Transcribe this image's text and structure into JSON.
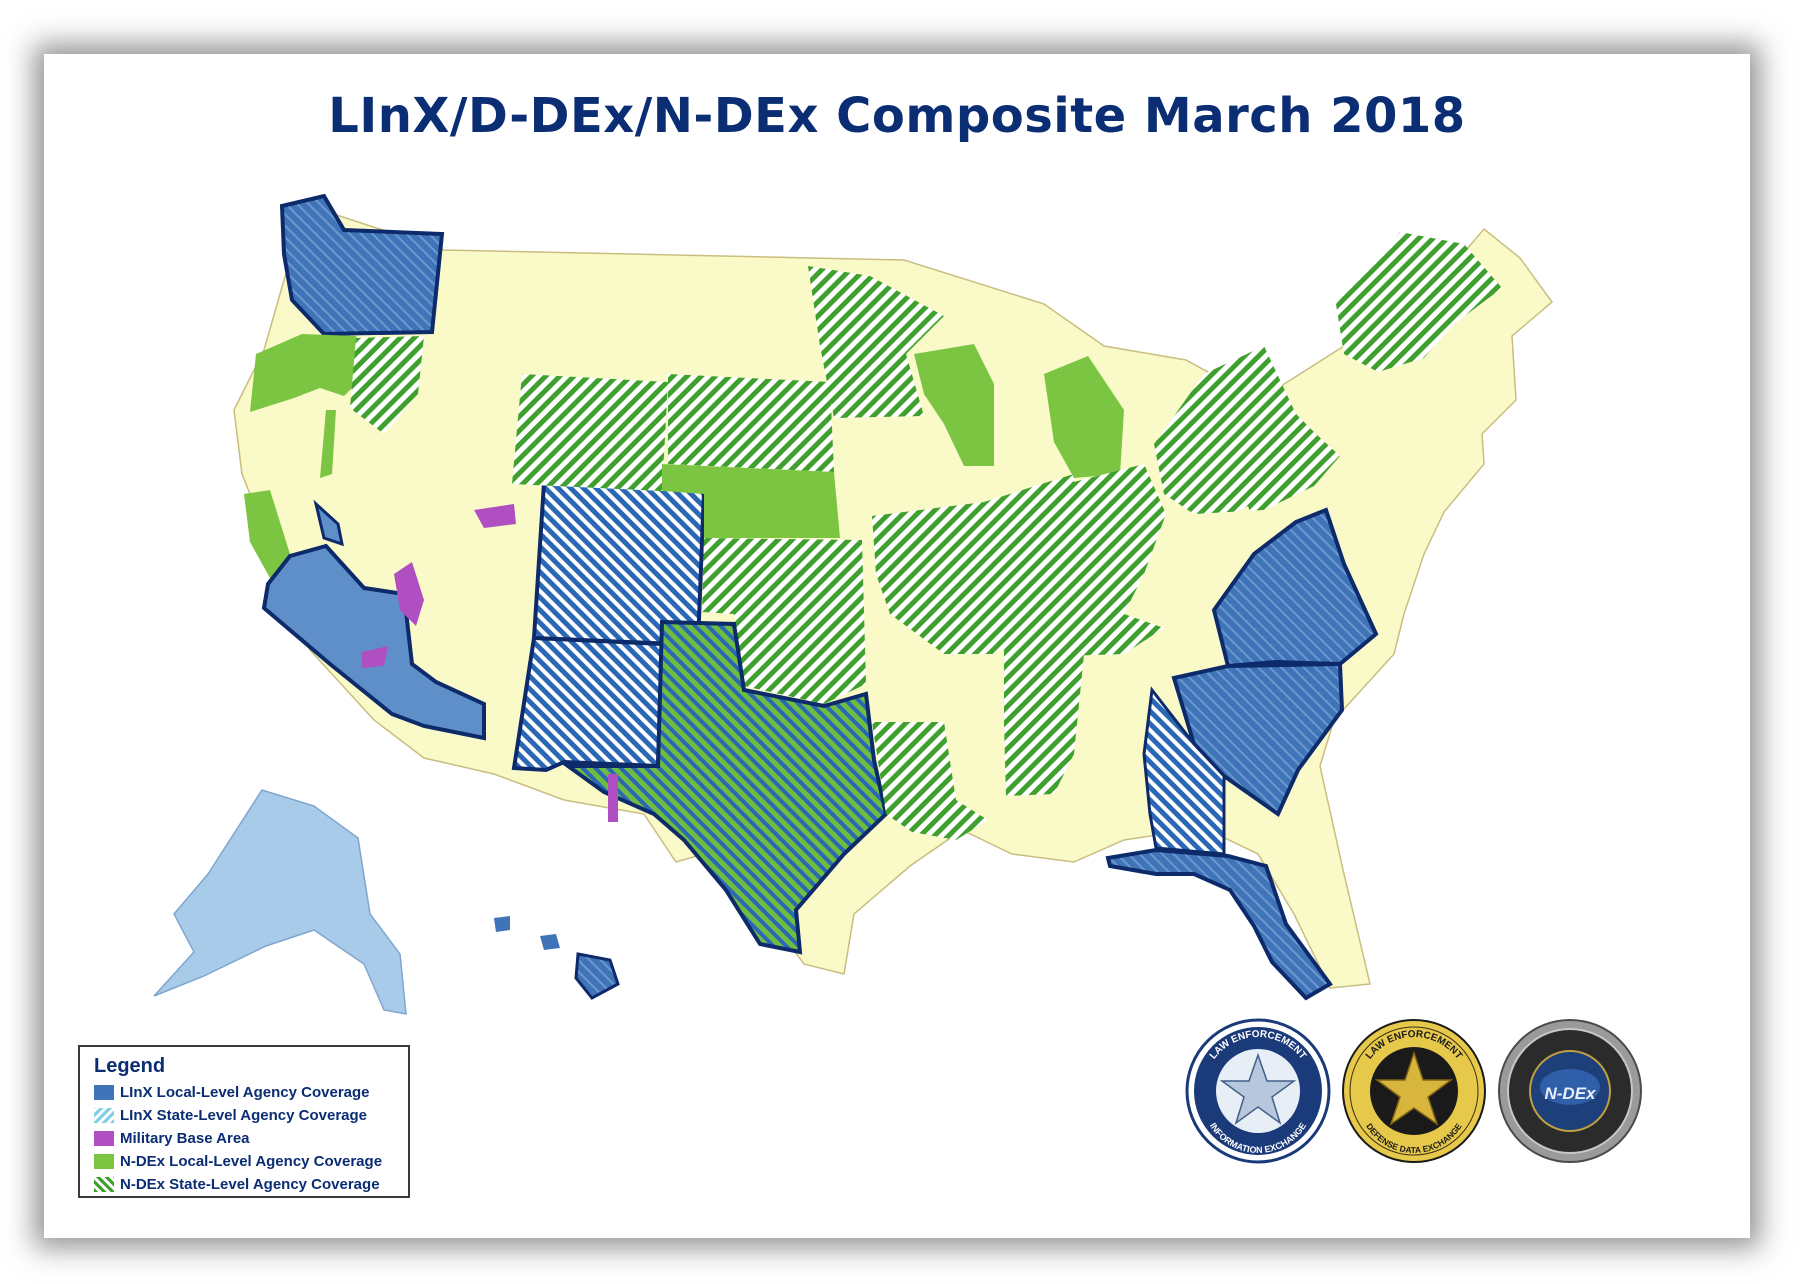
{
  "title": "LInX/D-DEx/N-DEx Composite March 2018",
  "legend": {
    "title": "Legend",
    "items": [
      {
        "label": "LInX Local-Level Agency Coverage",
        "swatch": "linx-local"
      },
      {
        "label": "LInX State-Level Agency Coverage",
        "swatch": "linx-state"
      },
      {
        "label": "Military Base Area",
        "swatch": "military"
      },
      {
        "label": "N-DEx Local-Level Agency Coverage",
        "swatch": "ndex-local"
      },
      {
        "label": "N-DEx State-Level Agency Coverage",
        "swatch": "ndex-state"
      }
    ]
  },
  "seals": [
    {
      "name": "linx-seal",
      "ring_top": "LAW ENFORCEMENT",
      "ring_bottom": "INFORMATION EXCHANGE"
    },
    {
      "name": "ddex-seal",
      "ring_top": "LAW ENFORCEMENT",
      "ring_bottom": "DEFENSE DATA EXCHANGE"
    },
    {
      "name": "ndex-seal",
      "center": "N-DEx"
    }
  ],
  "colors": {
    "background_state": "#fafac8",
    "linx_local": "#3f74b8",
    "linx_state": "#2a68b6",
    "military": "#b04fc2",
    "ndex_local": "#7bc542",
    "ndex_state": "#3f9f2f",
    "alaska": "#a9cbea",
    "border": "#0d2a6b",
    "title": "#0b2d73"
  }
}
